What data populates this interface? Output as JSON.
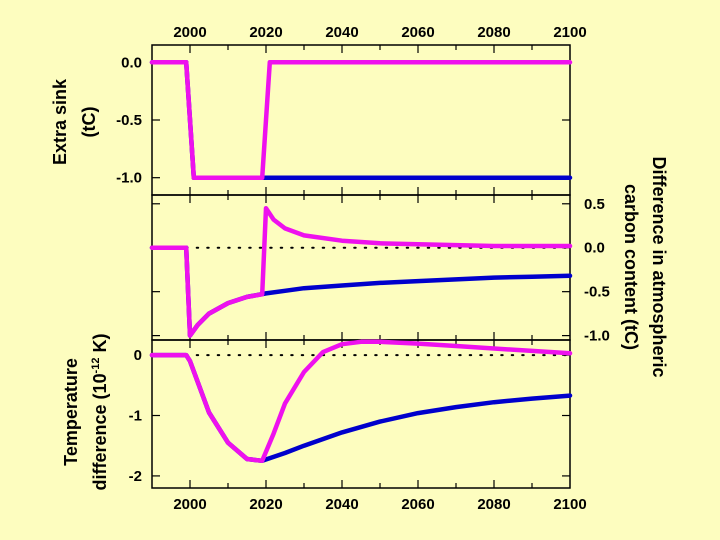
{
  "chart_data": [
    {
      "type": "line",
      "panel": "top",
      "ylabel_lines": [
        "Extra sink",
        "(tC)"
      ],
      "x_ticks": [
        2000,
        2020,
        2040,
        2060,
        2080,
        2100
      ],
      "x_tick_labels": [
        "2000",
        "2020",
        "2040",
        "2060",
        "2080",
        "2100"
      ],
      "x_axis_labels_position": "top",
      "y_axis_side": "left",
      "y_ticks": [
        0.0,
        -0.5,
        -1.0
      ],
      "y_tick_labels": [
        "0.0",
        "-0.5",
        "-1.0"
      ],
      "xlim": [
        1990,
        2100
      ],
      "ylim": [
        -1.15,
        0.15
      ],
      "series": [
        {
          "color": "#0000cc",
          "x": [
            1990,
            1999,
            2001,
            2100
          ],
          "y": [
            0.0,
            0.0,
            -1.0,
            -1.0
          ]
        },
        {
          "color": "#ee11ee",
          "x": [
            1990,
            1999,
            2001,
            2019,
            2021,
            2100
          ],
          "y": [
            0.0,
            0.0,
            -1.0,
            -1.0,
            0.0,
            0.0
          ]
        }
      ]
    },
    {
      "type": "line",
      "panel": "middle",
      "ylabel_lines": [
        "Difference in atmospheric",
        "carbon content (tC)"
      ],
      "y_axis_side": "right",
      "y_ticks": [
        0.5,
        0.0,
        -0.5,
        -1.0
      ],
      "y_tick_labels": [
        "0.5",
        "0.0",
        "-0.5",
        "-1.0"
      ],
      "xlim": [
        1990,
        2100
      ],
      "ylim": [
        -1.05,
        0.6
      ],
      "reference_line_y": 0.0,
      "series": [
        {
          "color": "#0000cc",
          "x": [
            1990,
            1999,
            2000,
            2002,
            2005,
            2010,
            2015,
            2020,
            2025,
            2030,
            2040,
            2050,
            2060,
            2070,
            2080,
            2090,
            2100
          ],
          "y": [
            0.0,
            0.0,
            -1.0,
            -0.88,
            -0.75,
            -0.63,
            -0.56,
            -0.52,
            -0.49,
            -0.46,
            -0.43,
            -0.4,
            -0.38,
            -0.36,
            -0.34,
            -0.33,
            -0.32
          ]
        },
        {
          "color": "#ee11ee",
          "x": [
            1990,
            1999,
            2000,
            2002,
            2005,
            2010,
            2015,
            2019,
            2020,
            2022,
            2025,
            2030,
            2040,
            2050,
            2060,
            2070,
            2080,
            2090,
            2100
          ],
          "y": [
            0.0,
            0.0,
            -1.0,
            -0.88,
            -0.75,
            -0.63,
            -0.56,
            -0.53,
            0.45,
            0.32,
            0.22,
            0.14,
            0.08,
            0.05,
            0.04,
            0.03,
            0.02,
            0.02,
            0.02
          ]
        }
      ]
    },
    {
      "type": "line",
      "panel": "bottom",
      "ylabel_lines": [
        "Temperature",
        "difference (10",
        "-12",
        " K)"
      ],
      "x_ticks": [
        2000,
        2020,
        2040,
        2060,
        2080,
        2100
      ],
      "x_tick_labels": [
        "2000",
        "2020",
        "2040",
        "2060",
        "2080",
        "2100"
      ],
      "x_axis_labels_position": "bottom",
      "y_axis_side": "left",
      "y_ticks": [
        0,
        -1,
        -2
      ],
      "y_tick_labels": [
        "0",
        "-1",
        "-2"
      ],
      "xlim": [
        1990,
        2100
      ],
      "ylim": [
        -2.2,
        0.25
      ],
      "reference_line_y": 0.0,
      "series": [
        {
          "color": "#0000cc",
          "x": [
            1990,
            1999,
            2000,
            2005,
            2010,
            2015,
            2019,
            2025,
            2030,
            2040,
            2050,
            2060,
            2070,
            2080,
            2090,
            2100
          ],
          "y": [
            0.0,
            0.0,
            -0.1,
            -0.95,
            -1.45,
            -1.72,
            -1.75,
            -1.62,
            -1.5,
            -1.28,
            -1.1,
            -0.96,
            -0.86,
            -0.78,
            -0.72,
            -0.67
          ]
        },
        {
          "color": "#ee11ee",
          "x": [
            1990,
            1999,
            2000,
            2005,
            2010,
            2015,
            2019,
            2022,
            2025,
            2030,
            2035,
            2040,
            2045,
            2050,
            2060,
            2070,
            2080,
            2090,
            2100
          ],
          "y": [
            0.0,
            0.0,
            -0.1,
            -0.95,
            -1.45,
            -1.72,
            -1.75,
            -1.3,
            -0.8,
            -0.28,
            0.05,
            0.18,
            0.22,
            0.22,
            0.19,
            0.15,
            0.11,
            0.07,
            0.03
          ]
        }
      ]
    }
  ]
}
